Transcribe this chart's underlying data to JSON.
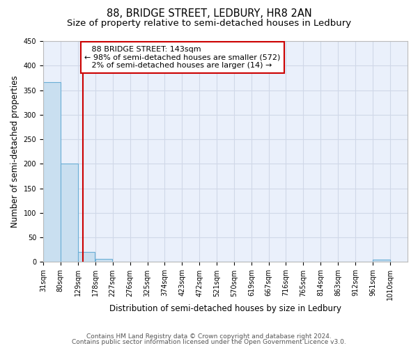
{
  "title": "88, BRIDGE STREET, LEDBURY, HR8 2AN",
  "subtitle": "Size of property relative to semi-detached houses in Ledbury",
  "xlabel": "Distribution of semi-detached houses by size in Ledbury",
  "ylabel": "Number of semi-detached properties",
  "footer_line1": "Contains HM Land Registry data © Crown copyright and database right 2024.",
  "footer_line2": "Contains public sector information licensed under the Open Government Licence v3.0.",
  "bins": [
    31,
    80,
    129,
    178,
    227,
    276,
    325,
    374,
    423,
    472,
    521,
    570,
    619,
    667,
    716,
    765,
    814,
    863,
    912,
    961,
    1010
  ],
  "bar_heights": [
    367,
    200,
    20,
    6,
    0,
    0,
    0,
    0,
    0,
    0,
    0,
    0,
    0,
    0,
    0,
    0,
    0,
    0,
    0,
    5
  ],
  "bar_color": "#c9dff0",
  "bar_edge_color": "#6aaed6",
  "grid_color": "#d0d8e8",
  "background_color": "#eaf0fb",
  "property_size": 143,
  "property_label": "88 BRIDGE STREET: 143sqm",
  "pct_smaller": 98,
  "count_smaller": 572,
  "pct_larger": 2,
  "count_larger": 14,
  "vline_color": "#cc0000",
  "annotation_box_color": "#cc0000",
  "ylim": [
    0,
    450
  ],
  "yticks": [
    0,
    50,
    100,
    150,
    200,
    250,
    300,
    350,
    400,
    450
  ],
  "title_fontsize": 10.5,
  "subtitle_fontsize": 9.5,
  "tick_fontsize": 7,
  "ylabel_fontsize": 8.5,
  "xlabel_fontsize": 8.5,
  "footer_fontsize": 6.5,
  "annotation_fontsize": 8
}
